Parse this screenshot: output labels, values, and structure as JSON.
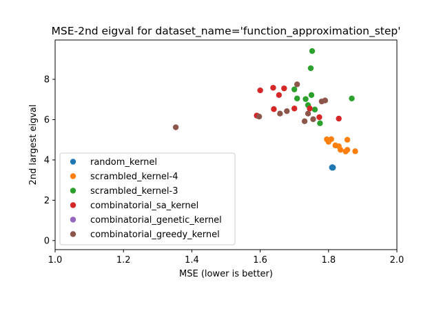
{
  "chart_data": {
    "type": "scatter",
    "title": "MSE-2nd eigval for dataset_name='function_approximation_step'",
    "xlabel": "MSE (lower is better)",
    "ylabel": "2nd largest eigval",
    "xlim": [
      1.0,
      2.0
    ],
    "ylim": [
      -0.45,
      9.95
    ],
    "xticks": [
      "1.0",
      "1.2",
      "1.4",
      "1.6",
      "1.8",
      "2.0"
    ],
    "yticks": [
      "0",
      "2",
      "4",
      "6",
      "8"
    ],
    "grid": false,
    "legend_position": "lower-left",
    "series": [
      {
        "name": "random_kernel",
        "color": "#1f77b4",
        "points": [
          [
            1.81,
            3.62
          ],
          [
            1.813,
            3.62
          ],
          [
            1.811,
            3.64
          ],
          [
            1.812,
            3.61
          ]
        ]
      },
      {
        "name": "scrambled_kernel-4",
        "color": "#ff7f0e",
        "points": [
          [
            1.795,
            5.02
          ],
          [
            1.8,
            4.9
          ],
          [
            1.808,
            5.03
          ],
          [
            1.82,
            4.72
          ],
          [
            1.83,
            4.68
          ],
          [
            1.835,
            4.5
          ],
          [
            1.85,
            4.42
          ],
          [
            1.855,
            5.0
          ],
          [
            1.855,
            4.5
          ],
          [
            1.878,
            4.43
          ]
        ]
      },
      {
        "name": "scrambled_kernel-3",
        "color": "#2ca02c",
        "points": [
          [
            1.752,
            9.4
          ],
          [
            1.748,
            8.55
          ],
          [
            1.7,
            7.5
          ],
          [
            1.708,
            7.05
          ],
          [
            1.733,
            7.02
          ],
          [
            1.75,
            7.22
          ],
          [
            1.74,
            6.72
          ],
          [
            1.76,
            6.5
          ],
          [
            1.775,
            5.82
          ],
          [
            1.868,
            7.05
          ]
        ]
      },
      {
        "name": "combinatorial_sa_kernel",
        "color": "#d62728",
        "points": [
          [
            1.6,
            7.45
          ],
          [
            1.638,
            7.58
          ],
          [
            1.67,
            7.55
          ],
          [
            1.655,
            7.22
          ],
          [
            1.59,
            6.2
          ],
          [
            1.64,
            6.52
          ],
          [
            1.7,
            6.55
          ],
          [
            1.745,
            6.55
          ],
          [
            1.773,
            6.12
          ],
          [
            1.83,
            6.05
          ]
        ]
      },
      {
        "name": "combinatorial_genetic_kernel",
        "color": "#9467bd",
        "points": []
      },
      {
        "name": "combinatorial_greedy_kernel",
        "color": "#8c564b",
        "points": [
          [
            1.353,
            5.62
          ],
          [
            1.597,
            6.15
          ],
          [
            1.658,
            6.3
          ],
          [
            1.678,
            6.42
          ],
          [
            1.708,
            7.75
          ],
          [
            1.73,
            5.92
          ],
          [
            1.74,
            6.3
          ],
          [
            1.755,
            6.02
          ],
          [
            1.78,
            6.9
          ],
          [
            1.79,
            6.95
          ]
        ]
      }
    ]
  }
}
